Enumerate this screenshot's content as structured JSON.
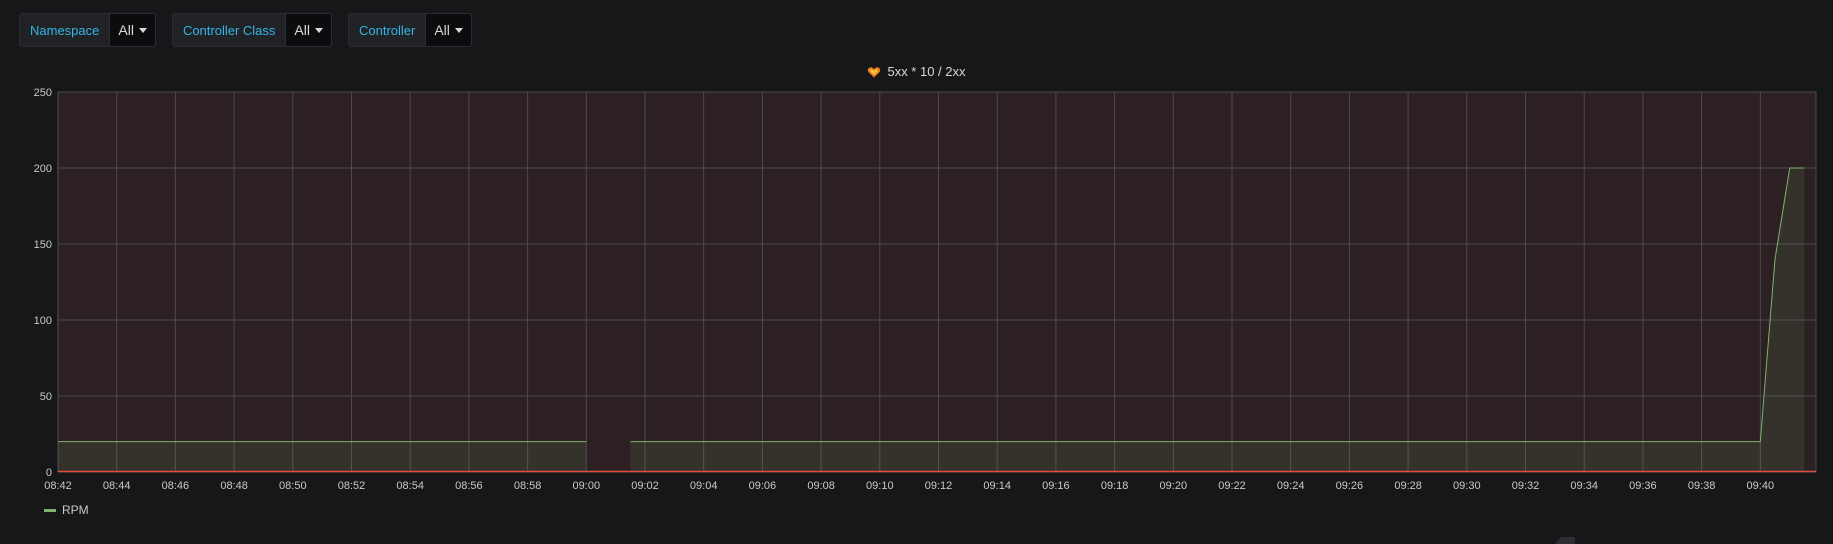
{
  "variables": [
    {
      "label": "Namespace",
      "value": "All"
    },
    {
      "label": "Controller Class",
      "value": "All"
    },
    {
      "label": "Controller",
      "value": "All"
    }
  ],
  "panel": {
    "title": "5xx * 10 / 2xx",
    "alert_icon": "heart-icon"
  },
  "colors": {
    "background": "#161719",
    "plot_area": "#2c2023",
    "series_rpm": "#7eb26d",
    "threshold": "#e24d42",
    "grid": "#4a4b50"
  },
  "chart_data": {
    "type": "line",
    "title": "5xx * 10 / 2xx",
    "xlabel": "",
    "ylabel": "",
    "ylim": [
      0,
      250
    ],
    "yticks": [
      "0",
      "50",
      "100",
      "150",
      "200",
      "250"
    ],
    "xticks": [
      "08:42",
      "08:44",
      "08:46",
      "08:48",
      "08:50",
      "08:52",
      "08:54",
      "08:56",
      "08:58",
      "09:00",
      "09:02",
      "09:04",
      "09:06",
      "09:08",
      "09:10",
      "09:12",
      "09:14",
      "09:16",
      "09:18",
      "09:20",
      "09:22",
      "09:24",
      "09:26",
      "09:28",
      "09:30",
      "09:32",
      "09:34",
      "09:36",
      "09:38",
      "09:40"
    ],
    "xrange": [
      "08:42",
      "09:41:45"
    ],
    "grid": true,
    "legend_position": "bottom-left",
    "series": [
      {
        "name": "RPM",
        "segments": [
          [
            [
              "08:42",
              20
            ],
            [
              "09:00",
              20
            ]
          ],
          [
            [
              "09:01:30",
              20
            ],
            [
              "09:40",
              20
            ],
            [
              "09:40:30",
              140
            ],
            [
              "09:41",
              200
            ],
            [
              "09:41:30",
              200
            ]
          ]
        ]
      }
    ],
    "threshold": {
      "value": 0,
      "direction": "above"
    }
  }
}
